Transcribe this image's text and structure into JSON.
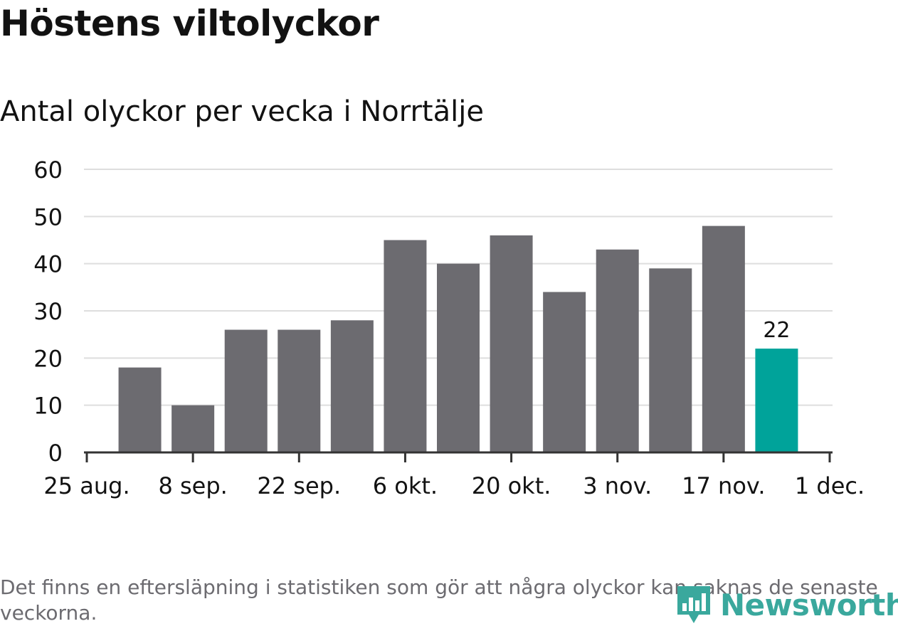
{
  "title": "Höstens viltolyckor",
  "subtitle": "Antal olyckor per vecka i Norrtälje",
  "footnote": "Det finns en eftersläpning i statistiken som gör att några olyckor kan saknas de senaste veckorna.",
  "logo": {
    "text": "Newsworthy",
    "icon": "newsworthy-logo-icon"
  },
  "colors": {
    "bar": "#6c6b70",
    "highlight": "#00a39a",
    "grid": "#dedede",
    "axis": "#333333",
    "text": "#121212",
    "muted": "#6c6b70",
    "logo": "#3aa89d"
  },
  "chart_data": {
    "type": "bar",
    "title": "Höstens viltolyckor",
    "subtitle": "Antal olyckor per vecka i Norrtälje",
    "xlabel": "",
    "ylabel": "",
    "ylim": [
      0,
      60
    ],
    "yticks": [
      0,
      10,
      20,
      30,
      40,
      50,
      60
    ],
    "grid": true,
    "x_range_weeks": [
      0,
      14
    ],
    "xticks": [
      {
        "label": "25 aug.",
        "week": 0
      },
      {
        "label": "8 sep.",
        "week": 2
      },
      {
        "label": "22 sep.",
        "week": 4
      },
      {
        "label": "6 okt.",
        "week": 6
      },
      {
        "label": "20 okt.",
        "week": 8
      },
      {
        "label": "3 nov.",
        "week": 10
      },
      {
        "label": "17 nov.",
        "week": 12
      },
      {
        "label": "1 dec.",
        "week": 14
      }
    ],
    "bars": [
      {
        "week_start": "1 sep.",
        "value": 18
      },
      {
        "week_start": "8 sep.",
        "value": 10
      },
      {
        "week_start": "15 sep.",
        "value": 26
      },
      {
        "week_start": "22 sep.",
        "value": 26
      },
      {
        "week_start": "29 sep.",
        "value": 28
      },
      {
        "week_start": "6 okt.",
        "value": 45
      },
      {
        "week_start": "13 okt.",
        "value": 40
      },
      {
        "week_start": "20 okt.",
        "value": 46
      },
      {
        "week_start": "27 okt.",
        "value": 34
      },
      {
        "week_start": "3 nov.",
        "value": 43
      },
      {
        "week_start": "10 nov.",
        "value": 39
      },
      {
        "week_start": "17 nov.",
        "value": 48
      },
      {
        "week_start": "24 nov.",
        "value": 22,
        "highlight": true,
        "label": "22"
      }
    ]
  }
}
